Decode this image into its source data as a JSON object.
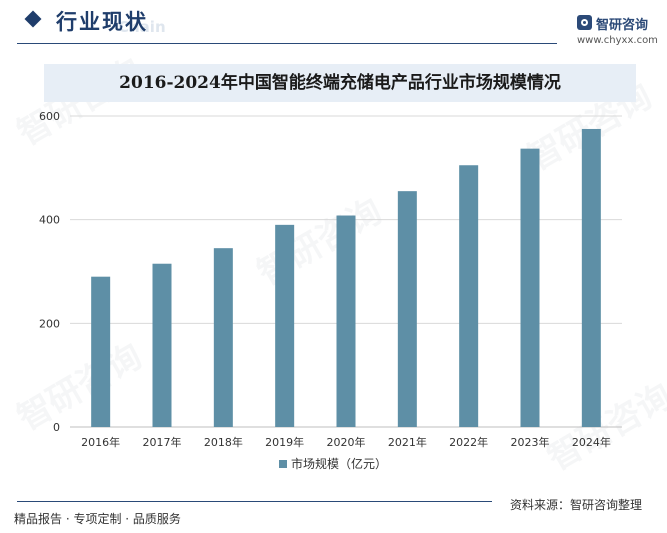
{
  "header": {
    "section_title": "行业现状",
    "section_title_en": "Chain",
    "logo_name": "智研咨询",
    "logo_url": "www.chyxx.com"
  },
  "watermark_text": "智研咨询",
  "footer": {
    "left_text": "精品报告 · 专项定制 · 品质服务",
    "source_text": "资料来源：智研咨询整理"
  },
  "colors": {
    "bar": "#5e8fa6",
    "grid": "#d9d9d9",
    "title_band": "#e7eef6",
    "brand": "#1f3d6b"
  },
  "chart_data": {
    "type": "bar",
    "title": "2016-2024年中国智能终端充储电产品行业市场规模情况",
    "categories": [
      "2016年",
      "2017年",
      "2018年",
      "2019年",
      "2020年",
      "2021年",
      "2022年",
      "2023年",
      "2024年"
    ],
    "series": [
      {
        "name": "市场规模（亿元）",
        "values": [
          290,
          315,
          345,
          390,
          408,
          455,
          505,
          537,
          575
        ]
      }
    ],
    "yticks": [
      0,
      200,
      400,
      600
    ],
    "ylim": [
      0,
      600
    ],
    "grid": true,
    "legend_position": "bottom"
  }
}
